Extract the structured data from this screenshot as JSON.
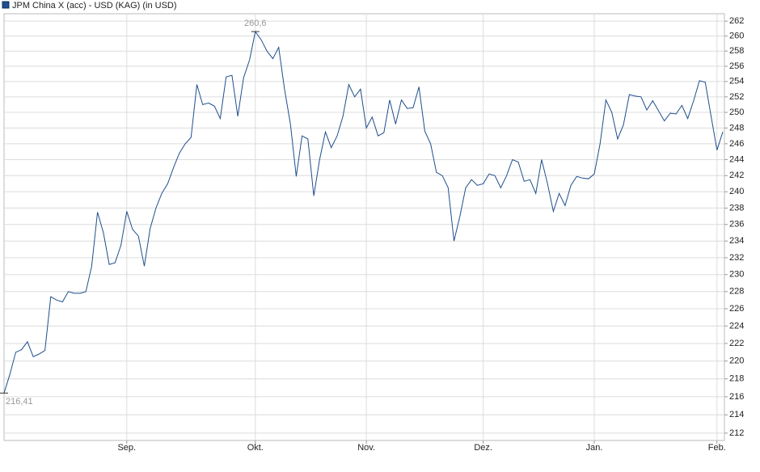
{
  "chart_data": {
    "type": "line",
    "categories": [
      null,
      null,
      null,
      null,
      null,
      null,
      null,
      null,
      null,
      null,
      null,
      null,
      null,
      null,
      null,
      null,
      null,
      null,
      null,
      null,
      null,
      "Sep.",
      null,
      null,
      null,
      null,
      null,
      null,
      null,
      null,
      null,
      null,
      null,
      null,
      null,
      null,
      null,
      null,
      null,
      null,
      null,
      null,
      null,
      "Okt.",
      null,
      null,
      null,
      null,
      null,
      null,
      null,
      null,
      null,
      null,
      null,
      null,
      null,
      null,
      null,
      null,
      null,
      null,
      "Nov.",
      null,
      null,
      null,
      null,
      null,
      null,
      null,
      null,
      null,
      null,
      null,
      null,
      null,
      null,
      null,
      null,
      null,
      null,
      null,
      "Dez.",
      null,
      null,
      null,
      null,
      null,
      null,
      null,
      null,
      null,
      null,
      null,
      null,
      null,
      null,
      null,
      null,
      null,
      null,
      "Jan.",
      null,
      null,
      null,
      null,
      null,
      null,
      null,
      null,
      null,
      null,
      null,
      null,
      null,
      null,
      null,
      null,
      null,
      null,
      null,
      null,
      "Feb.",
      null
    ],
    "series": [
      {
        "name": "JPM China X (acc) - USD (KAG) (in USD)",
        "color": "#1f4e8c",
        "values": [
          216.41,
          218.5,
          221,
          221.3,
          222.2,
          220.5,
          220.8,
          221.2,
          227.4,
          227,
          226.8,
          228,
          227.8,
          227.8,
          228,
          231,
          237.5,
          235,
          231.2,
          231.4,
          233.5,
          237.6,
          235.4,
          234.6,
          231,
          235.5,
          238,
          239.8,
          241,
          243,
          244.8,
          246,
          246.8,
          253.6,
          251,
          251.2,
          250.8,
          249.2,
          254.6,
          254.8,
          249.5,
          254.5,
          256.8,
          260.6,
          259.5,
          258,
          257,
          258.5,
          253,
          248.5,
          241.9,
          247,
          246.6,
          239.5,
          244,
          247.5,
          245.5,
          247,
          249.5,
          253.6,
          252,
          253,
          248,
          249.4,
          247,
          247.4,
          251.6,
          248.5,
          251.6,
          250.5,
          250.6,
          253.3,
          247.6,
          246,
          242.4,
          242,
          240.5,
          234,
          237,
          240.5,
          241.5,
          240.8,
          241,
          242.2,
          242,
          240.5,
          242,
          244,
          243.7,
          241.3,
          241.5,
          239.8,
          244,
          241,
          237.6,
          239.8,
          238.3,
          240.8,
          241.9,
          241.7,
          241.6,
          242.2,
          246,
          251.6,
          250,
          246.6,
          248.4,
          252.3,
          252.1,
          252,
          250.3,
          251.5,
          250.2,
          248.9,
          249.9,
          249.8,
          250.9,
          249.2,
          251.5,
          254.1,
          253.9,
          249.5,
          245.2,
          247.5
        ],
        "value_labels": [
          "216,41",
          null,
          null,
          null,
          null,
          null,
          null,
          null,
          null,
          null,
          null,
          null,
          null,
          null,
          null,
          null,
          null,
          null,
          null,
          null,
          null,
          null,
          null,
          null,
          null,
          null,
          null,
          null,
          null,
          null,
          null,
          null,
          null,
          null,
          null,
          null,
          null,
          null,
          null,
          null,
          null,
          null,
          null,
          "260,6",
          null,
          null,
          null,
          null,
          null,
          null,
          null,
          null,
          null,
          null,
          null,
          null,
          null,
          null,
          null,
          null,
          null,
          null,
          null,
          null,
          null,
          null,
          null,
          null,
          null,
          null,
          null,
          null,
          null,
          null,
          null,
          null,
          null,
          null,
          null,
          null,
          null,
          null,
          null,
          null,
          null,
          null,
          null,
          null,
          null,
          null,
          null,
          null,
          null,
          null,
          null,
          null,
          null,
          null,
          null,
          null,
          null,
          null,
          null,
          null,
          null,
          null,
          null,
          null,
          null,
          null,
          null,
          null,
          null,
          null,
          null,
          null,
          null,
          null,
          null,
          null,
          null,
          null,
          null,
          null
        ]
      }
    ],
    "ylim": [
      211.2,
      263
    ],
    "yticks": [
      212,
      214,
      216,
      218,
      220,
      222,
      224,
      226,
      228,
      230,
      232,
      234,
      236,
      238,
      240,
      242,
      244,
      246,
      248,
      250,
      252,
      254,
      256,
      258,
      260,
      262
    ],
    "log_scale": true,
    "grid": true,
    "legend": "top-left"
  }
}
